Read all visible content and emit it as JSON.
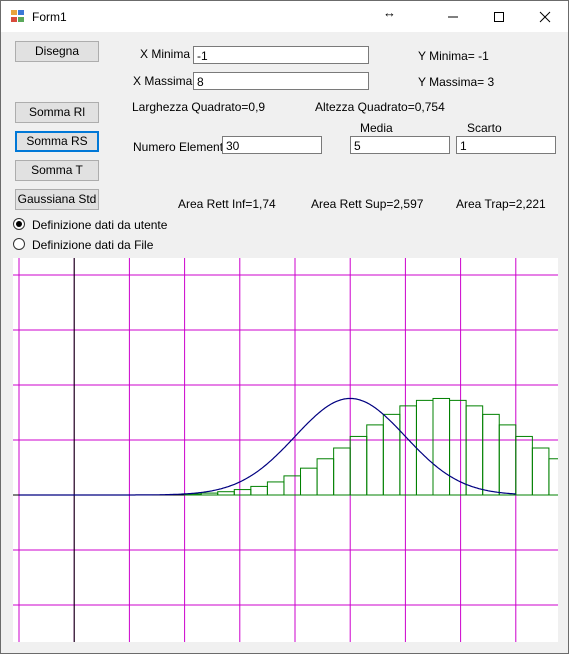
{
  "window": {
    "title": "Form1"
  },
  "buttons": {
    "disegna": "Disegna",
    "somma_rl": "Somma Rl",
    "somma_rs": "Somma RS",
    "somma_t": "Somma T",
    "gaussiana_std": "Gaussiana Std"
  },
  "fields": {
    "x_minima_label": "X Minima",
    "x_minima_value": "-1",
    "x_massima_label": "X Massima",
    "x_massima_value": "8",
    "numero_elementi_label": "Numero Elementi",
    "numero_elementi_value": "30",
    "media_label": "Media",
    "media_value": "5",
    "scarto_label": "Scarto",
    "scarto_value": "1"
  },
  "info": {
    "y_minima": "Y Minima= -1",
    "y_massima": "Y Massima= 3",
    "larghezza": "Larghezza Quadrato=0,9",
    "altezza": "Altezza Quadrato=0,754",
    "area_inf": "Area Rett Inf=1,74",
    "area_sup": "Area Rett Sup=2,597",
    "area_trap": "Area Trap=2,221"
  },
  "radios": {
    "utente": "Definizione dati da utente",
    "file": "Definizione dati da File",
    "selected": "utente"
  },
  "colors": {
    "grid": "#cc00cc",
    "axis": "#000000",
    "rectangles": "#008000",
    "curve": "#000080"
  },
  "chart_data": {
    "type": "line",
    "xlim": [
      -1,
      8
    ],
    "ylim": [
      -1,
      3
    ],
    "grid_spacing_x": 1,
    "grid_spacing_y": 0.5,
    "n_elements": 30,
    "mean": 5,
    "std": 1,
    "x_start": 2,
    "bar_width": 0.3,
    "rect_inf_heights": [
      0.0044,
      0.0079,
      0.0136,
      0.0224,
      0.0355,
      0.054,
      0.079,
      0.1109,
      0.1497,
      0.1942,
      0.242,
      0.2897,
      0.3332,
      0.3683,
      0.391,
      0.3989,
      0.391,
      0.3683,
      0.3332,
      0.2897,
      0.242,
      0.1942,
      0.1497,
      0.1109,
      0.079,
      0.054,
      0.0355,
      0.0224,
      0.0136,
      0.0079
    ]
  }
}
